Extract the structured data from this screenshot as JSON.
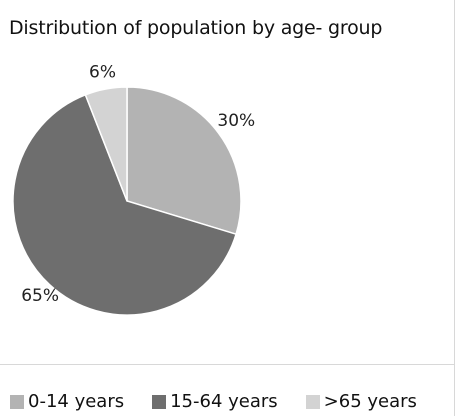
{
  "chart_data": {
    "type": "pie",
    "title": "Distribution of population by age- group",
    "categories": [
      "0-14 years",
      "15-64 years",
      ">65 years"
    ],
    "values": [
      30,
      65,
      6
    ],
    "labels": [
      "30%",
      "65%",
      "6%"
    ],
    "colors": [
      "#b3b3b3",
      "#6e6e6e",
      "#d3d3d3"
    ],
    "legend_position": "bottom"
  }
}
